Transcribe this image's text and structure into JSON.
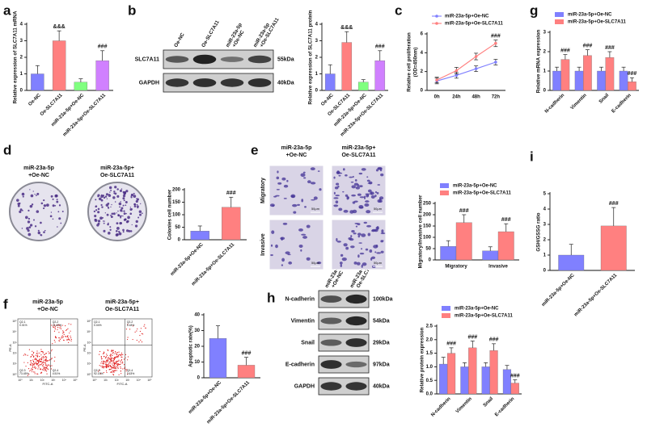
{
  "chart_data": [
    {
      "type": "bar",
      "panel": "a",
      "y_label": "Relative expression of SLC7A11 mRNA",
      "categories": [
        "Oe-NC",
        "Oe-SLC7A11",
        "miR-23a-5p+Oe-NC",
        "miR-23a-5p+Oe-SLC7A11"
      ],
      "values": [
        1.0,
        3.0,
        0.5,
        1.8
      ],
      "errors": [
        0.5,
        0.6,
        0.2,
        0.6
      ],
      "colors": [
        "#8080ff",
        "#ff8080",
        "#80ff80",
        "#d080ff"
      ],
      "ylim": [
        0,
        4
      ],
      "yticks": [
        0,
        1,
        2,
        3,
        4
      ],
      "annotations": [
        {
          "text": "&&&",
          "category": "Oe-SLC7A11"
        },
        {
          "text": "###",
          "category": "miR-23a-5p+Oe-SLC7A11"
        }
      ]
    },
    {
      "type": "bar",
      "y_label": "Relative expression of SLC7A11 protein",
      "categories": [
        "Oe-NC",
        "Oe-SLC7A11",
        "miR-23a-5p+Oe-NC",
        "miR-23a-5p+Oe-SLC7A11"
      ],
      "values": [
        1.0,
        2.9,
        0.5,
        1.8
      ],
      "errors": [
        0.55,
        0.65,
        0.15,
        0.6
      ],
      "colors": [
        "#8080ff",
        "#ff8080",
        "#80ff80",
        "#d080ff"
      ],
      "ylim": [
        0,
        4
      ],
      "yticks": [
        0,
        1,
        2,
        3,
        4
      ],
      "annotations": [
        {
          "text": "&&&",
          "category": "Oe-SLC7A11"
        },
        {
          "text": "###",
          "category": "miR-23a-5p+Oe-SLC7A11"
        }
      ]
    },
    {
      "type": "line",
      "panel": "c",
      "y_label": [
        "Relative cell proliferation",
        "(OD=450nm)"
      ],
      "categories": [
        "0h",
        "24h",
        "48h",
        "72h"
      ],
      "ylim": [
        0,
        6
      ],
      "yticks": [
        0,
        2,
        4,
        6
      ],
      "legend": "top",
      "series": [
        {
          "name": "miR-23a-5p+Oe-NC",
          "color": "#8080ff",
          "values": [
            1.0,
            1.6,
            2.3,
            3.0
          ],
          "errors": [
            0.3,
            0.3,
            0.3,
            0.3
          ]
        },
        {
          "name": "miR-23a-5p+Oe-SLC7A11",
          "color": "#ff7f7f",
          "values": [
            1.1,
            2.1,
            3.6,
            5.0
          ],
          "errors": [
            0.3,
            0.35,
            0.35,
            0.35
          ],
          "annotations": [
            {
              "text": "###",
              "category": "72h"
            }
          ]
        }
      ]
    },
    {
      "type": "bar",
      "panel": "g",
      "y_label": "Relative mRNA expression",
      "categories": [
        "N-cadherin",
        "Vimentin",
        "Snail",
        "E-cadherin"
      ],
      "ylim": [
        0,
        3
      ],
      "yticks": [
        0,
        1,
        2,
        3
      ],
      "legend": "top",
      "series": [
        {
          "name": "miR-23a-5p+Oe-NC",
          "color": "#8080ff",
          "values": [
            1.0,
            1.0,
            1.0,
            1.0
          ],
          "errors": [
            0.2,
            0.2,
            0.2,
            0.2
          ]
        },
        {
          "name": "miR-23a-5p+Oe-SLC7A11",
          "color": "#ff8080",
          "values": [
            1.6,
            1.8,
            1.7,
            0.45
          ],
          "errors": [
            0.25,
            0.3,
            0.3,
            0.2
          ],
          "annotations": [
            {
              "text": "###",
              "category": "N-cadherin"
            },
            {
              "text": "###",
              "category": "Vimentin"
            },
            {
              "text": "###",
              "category": "Snail"
            },
            {
              "text": "###",
              "category": "E-cadherin"
            }
          ]
        }
      ]
    },
    {
      "type": "bar",
      "y_label": "Colonies cell number",
      "categories": [
        "miR-23a-5p+Oe-NC",
        "miR-23a-5p+Oe-SLC7A11"
      ],
      "values": [
        35,
        130
      ],
      "errors": [
        20,
        40
      ],
      "colors": [
        "#8080ff",
        "#ff8080"
      ],
      "ylim": [
        0,
        200
      ],
      "yticks": [
        0,
        50,
        100,
        150,
        200
      ],
      "annotations": [
        {
          "text": "###",
          "category": "miR-23a-5p+Oe-SLC7A11"
        }
      ]
    },
    {
      "type": "bar",
      "y_label": "Migratory/Invasive cell number",
      "categories": [
        "Migratory",
        "Invasive"
      ],
      "ylim": [
        0,
        250
      ],
      "yticks": [
        0,
        50,
        100,
        150,
        200,
        250
      ],
      "legend": "top",
      "series": [
        {
          "name": "miR-23a-5p+Oe-NC",
          "color": "#8080ff",
          "values": [
            60,
            40
          ],
          "errors": [
            25,
            18
          ]
        },
        {
          "name": "miR-23a-5p+Oe-SLC7A11",
          "color": "#ff8080",
          "values": [
            165,
            125
          ],
          "errors": [
            35,
            35
          ],
          "annotations": [
            {
              "text": "###",
              "category": "Migratory"
            },
            {
              "text": "###",
              "category": "Invasive"
            }
          ]
        }
      ]
    },
    {
      "type": "bar",
      "panel": "i",
      "y_label": "GSH/GSSG ratio",
      "categories": [
        "miR-23a-5p+Oe-NC",
        "miR-23a-5p+Oe-SLC7A11"
      ],
      "values": [
        1.0,
        2.9
      ],
      "errors": [
        0.7,
        1.2
      ],
      "colors": [
        "#8080ff",
        "#ff8080"
      ],
      "ylim": [
        0,
        5
      ],
      "yticks": [
        0,
        1,
        2,
        3,
        4,
        5
      ],
      "annotations": [
        {
          "text": "###",
          "category": "miR-23a-5p+Oe-SLC7A11"
        }
      ]
    },
    {
      "type": "bar",
      "y_label": "Apoptotic rate(%)",
      "categories": [
        "miR-23a-5p+Oe-NC",
        "miR-23a-5p+Oe-SLC7A11"
      ],
      "values": [
        25,
        8
      ],
      "errors": [
        8,
        5
      ],
      "colors": [
        "#8080ff",
        "#ff8080"
      ],
      "ylim": [
        0,
        40
      ],
      "yticks": [
        0,
        10,
        20,
        30,
        40
      ],
      "annotations": [
        {
          "text": "###",
          "category": "miR-23a-5p+Oe-SLC7A11"
        }
      ]
    },
    {
      "type": "bar",
      "y_label": "Relative protein expression",
      "categories": [
        "N-cadherin",
        "Vimentin",
        "Snail",
        "E-cadherin"
      ],
      "ylim": [
        0,
        2.5
      ],
      "yticks": [
        {
          "value": 0,
          "label": "0.0"
        },
        0.5,
        {
          "value": 1,
          "label": "1.0"
        },
        1.5,
        {
          "value": 2,
          "label": "2.0"
        },
        2.5
      ],
      "legend": "top",
      "series": [
        {
          "name": "miR-23a-5p+Oe-NC",
          "color": "#8080ff",
          "values": [
            1.1,
            1.0,
            1.0,
            0.9
          ],
          "errors": [
            0.25,
            0.15,
            0.15,
            0.15
          ]
        },
        {
          "name": "miR-23a-5p+Oe-SLC7A11",
          "color": "#ff8080",
          "values": [
            1.5,
            1.7,
            1.6,
            0.4
          ],
          "errors": [
            0.2,
            0.25,
            0.25,
            0.12
          ],
          "annotations": [
            {
              "text": "###",
              "category": "N-cadherin"
            },
            {
              "text": "###",
              "category": "Vimentin"
            },
            {
              "text": "###",
              "category": "Snail"
            },
            {
              "text": "###",
              "category": "E-cadherin"
            }
          ]
        }
      ]
    }
  ],
  "blots": [
    {
      "panel": "b",
      "columns": [
        [
          "Oe-NC"
        ],
        [
          "Oe-SLC7A11"
        ],
        [
          "miR-23a-5p",
          "+Oe-NC"
        ],
        [
          "miR-23a-5p",
          "+Oe-SLC7A11"
        ]
      ],
      "rows": [
        {
          "label": "SLC7A11",
          "size": "55kDa"
        },
        {
          "label": "GAPDH",
          "size": "40kDa"
        }
      ]
    },
    {
      "panel": "h",
      "columns": [
        [
          "miR-23a-5p",
          "+Oe-NC"
        ],
        [
          "miR-23a-5p+",
          "Oe-SLC7A11"
        ]
      ],
      "rows": [
        {
          "label": "N-cadherin",
          "size": "100kDa"
        },
        {
          "label": "Vimentin",
          "size": "54kDa"
        },
        {
          "label": "Snail",
          "size": "29kDa"
        },
        {
          "label": "E-cadherin",
          "size": "97kDa"
        },
        {
          "label": "GAPDH",
          "size": "40kDa"
        }
      ]
    }
  ],
  "images": [
    {
      "panel": "d",
      "columns": [
        [
          "miR-23a-5p",
          "+Oe-NC"
        ],
        [
          "miR-23a-5p+",
          "Oe-SLC7A11"
        ]
      ]
    },
    {
      "panel": "e",
      "columns": [
        [
          "miR-23a-5p",
          "+Oe-NC"
        ],
        [
          "miR-23a-5p+",
          "Oe-SLC7A11"
        ]
      ],
      "rows": [
        "Migratory",
        "Invasive"
      ],
      "scale_bar": "50μm"
    },
    {
      "panel": "f",
      "columns": [
        [
          "miR-23a-5p",
          "+Oe-NC"
        ],
        [
          "miR-23a-5p+",
          "Oe-SLC7A11"
        ]
      ],
      "x_axis": "FITC-A",
      "y_axis": "PE-A",
      "ticks": [
        "10⁰",
        "10¹",
        "10²",
        "10³",
        "10⁴",
        "10⁵"
      ],
      "quadrants": [
        [
          "Q2-1",
          "0.01%",
          "Q2-2",
          "21.00%",
          "Q2-3",
          "73.45%",
          "Q2-4",
          "4.51%"
        ],
        [
          "Q2-1",
          "0.04%",
          "Q2-2",
          "5.18%",
          "Q2-3",
          "92.15%",
          "Q2-4",
          "2.63%"
        ]
      ]
    }
  ]
}
